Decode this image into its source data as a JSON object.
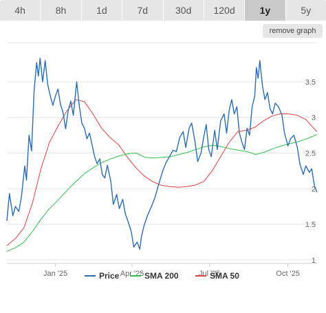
{
  "tabs": [
    {
      "label": "4h",
      "active": false
    },
    {
      "label": "8h",
      "active": false
    },
    {
      "label": "1d",
      "active": false
    },
    {
      "label": "7d",
      "active": false
    },
    {
      "label": "30d",
      "active": false
    },
    {
      "label": "120d",
      "active": false
    },
    {
      "label": "1y",
      "active": true
    },
    {
      "label": "5y",
      "active": false
    }
  ],
  "remove_graph_label": "remove graph",
  "colors": {
    "price": "#2b6cb0",
    "sma200": "#2fbf4a",
    "sma50": "#e0403c",
    "grid": "#e6e6e6"
  },
  "chart_data": {
    "type": "line",
    "title": "",
    "xlabel": "",
    "ylabel": "",
    "x_range": [
      "2024-11-05",
      "2025-11-05"
    ],
    "ylim": [
      0.95,
      4.05
    ],
    "y_ticks": [
      1,
      1.5,
      2,
      2.5,
      3,
      3.5
    ],
    "y_tick_labels": [
      "1",
      "1.5",
      "2",
      "2.5",
      "3",
      "3.5"
    ],
    "x_ticks": [
      "2025-01-01",
      "2025-04-01",
      "2025-07-01",
      "2025-10-01"
    ],
    "x_tick_labels": [
      "Jan '25",
      "Apr '25",
      "Jul '25",
      "Oct '25"
    ],
    "grid": true,
    "legend_position": "bottom",
    "series": [
      {
        "name": "Price",
        "color": "#2b6cb0",
        "points": [
          [
            "2024-11-05",
            1.55
          ],
          [
            "2024-11-08",
            1.93
          ],
          [
            "2024-11-12",
            1.62
          ],
          [
            "2024-11-15",
            1.75
          ],
          [
            "2024-11-19",
            1.68
          ],
          [
            "2024-11-22",
            1.88
          ],
          [
            "2024-11-26",
            2.32
          ],
          [
            "2024-11-28",
            2.12
          ],
          [
            "2024-12-01",
            2.75
          ],
          [
            "2024-12-04",
            2.53
          ],
          [
            "2024-12-07",
            3.38
          ],
          [
            "2024-12-10",
            3.77
          ],
          [
            "2024-12-12",
            3.58
          ],
          [
            "2024-12-14",
            3.83
          ],
          [
            "2024-12-17",
            3.5
          ],
          [
            "2024-12-20",
            3.8
          ],
          [
            "2024-12-23",
            3.46
          ],
          [
            "2024-12-26",
            3.3
          ],
          [
            "2024-12-29",
            3.17
          ],
          [
            "2025-01-01",
            3.3
          ],
          [
            "2025-01-04",
            3.4
          ],
          [
            "2025-01-07",
            3.18
          ],
          [
            "2025-01-10",
            3.07
          ],
          [
            "2025-01-13",
            2.84
          ],
          [
            "2025-01-16",
            3.1
          ],
          [
            "2025-01-19",
            3.23
          ],
          [
            "2025-01-22",
            3.03
          ],
          [
            "2025-01-26",
            3.5
          ],
          [
            "2025-01-29",
            3.16
          ],
          [
            "2025-02-01",
            2.92
          ],
          [
            "2025-02-04",
            2.85
          ],
          [
            "2025-02-07",
            2.7
          ],
          [
            "2025-02-10",
            2.78
          ],
          [
            "2025-02-13",
            2.62
          ],
          [
            "2025-02-16",
            2.45
          ],
          [
            "2025-02-19",
            2.35
          ],
          [
            "2025-02-22",
            2.42
          ],
          [
            "2025-02-25",
            2.2
          ],
          [
            "2025-02-28",
            2.15
          ],
          [
            "2025-03-03",
            2.33
          ],
          [
            "2025-03-07",
            2.1
          ],
          [
            "2025-03-10",
            1.78
          ],
          [
            "2025-03-14",
            1.92
          ],
          [
            "2025-03-17",
            1.72
          ],
          [
            "2025-03-21",
            1.85
          ],
          [
            "2025-03-24",
            1.65
          ],
          [
            "2025-03-27",
            1.55
          ],
          [
            "2025-03-31",
            1.4
          ],
          [
            "2025-04-03",
            1.18
          ],
          [
            "2025-04-07",
            1.25
          ],
          [
            "2025-04-10",
            1.15
          ],
          [
            "2025-04-12",
            1.33
          ],
          [
            "2025-04-15",
            1.48
          ],
          [
            "2025-04-19",
            1.62
          ],
          [
            "2025-04-23",
            1.73
          ],
          [
            "2025-04-28",
            1.88
          ],
          [
            "2025-05-02",
            2.05
          ],
          [
            "2025-05-07",
            2.25
          ],
          [
            "2025-05-11",
            2.37
          ],
          [
            "2025-05-15",
            2.45
          ],
          [
            "2025-05-19",
            2.54
          ],
          [
            "2025-05-23",
            2.52
          ],
          [
            "2025-05-27",
            2.72
          ],
          [
            "2025-05-31",
            2.8
          ],
          [
            "2025-06-03",
            2.58
          ],
          [
            "2025-06-07",
            2.85
          ],
          [
            "2025-06-10",
            2.92
          ],
          [
            "2025-06-14",
            2.65
          ],
          [
            "2025-06-17",
            2.38
          ],
          [
            "2025-06-21",
            2.5
          ],
          [
            "2025-06-24",
            2.72
          ],
          [
            "2025-06-27",
            2.9
          ],
          [
            "2025-06-30",
            2.55
          ],
          [
            "2025-07-03",
            2.45
          ],
          [
            "2025-07-07",
            2.82
          ],
          [
            "2025-07-10",
            2.55
          ],
          [
            "2025-07-14",
            2.95
          ],
          [
            "2025-07-18",
            3.05
          ],
          [
            "2025-07-21",
            2.78
          ],
          [
            "2025-07-24",
            3.1
          ],
          [
            "2025-07-27",
            3.25
          ],
          [
            "2025-07-30",
            3.05
          ],
          [
            "2025-08-02",
            3.15
          ],
          [
            "2025-08-05",
            2.78
          ],
          [
            "2025-08-08",
            2.65
          ],
          [
            "2025-08-11",
            2.55
          ],
          [
            "2025-08-14",
            2.85
          ],
          [
            "2025-08-17",
            2.75
          ],
          [
            "2025-08-20",
            3.15
          ],
          [
            "2025-08-23",
            3.3
          ],
          [
            "2025-08-25",
            3.7
          ],
          [
            "2025-08-27",
            3.55
          ],
          [
            "2025-08-29",
            3.8
          ],
          [
            "2025-09-01",
            3.45
          ],
          [
            "2025-09-04",
            3.25
          ],
          [
            "2025-09-07",
            3.35
          ],
          [
            "2025-09-10",
            3.12
          ],
          [
            "2025-09-13",
            3.05
          ],
          [
            "2025-09-16",
            3.2
          ],
          [
            "2025-09-20",
            3.15
          ],
          [
            "2025-09-24",
            3.03
          ],
          [
            "2025-09-27",
            2.78
          ],
          [
            "2025-10-01",
            2.6
          ],
          [
            "2025-10-04",
            2.7
          ],
          [
            "2025-10-08",
            2.75
          ],
          [
            "2025-10-12",
            2.58
          ],
          [
            "2025-10-15",
            2.35
          ],
          [
            "2025-10-19",
            2.2
          ],
          [
            "2025-10-22",
            2.32
          ],
          [
            "2025-10-26",
            2.23
          ],
          [
            "2025-10-29",
            2.28
          ],
          [
            "2025-11-01",
            2.05
          ],
          [
            "2025-11-04",
            1.95
          ]
        ]
      },
      {
        "name": "SMA 200",
        "color": "#2fbf4a",
        "points": [
          [
            "2024-11-05",
            1.12
          ],
          [
            "2024-11-15",
            1.17
          ],
          [
            "2024-11-25",
            1.25
          ],
          [
            "2024-12-05",
            1.4
          ],
          [
            "2024-12-15",
            1.57
          ],
          [
            "2024-12-25",
            1.72
          ],
          [
            "2025-01-05",
            1.85
          ],
          [
            "2025-01-15",
            1.98
          ],
          [
            "2025-01-25",
            2.1
          ],
          [
            "2025-02-05",
            2.22
          ],
          [
            "2025-02-15",
            2.3
          ],
          [
            "2025-02-25",
            2.37
          ],
          [
            "2025-03-07",
            2.42
          ],
          [
            "2025-03-17",
            2.46
          ],
          [
            "2025-03-27",
            2.49
          ],
          [
            "2025-04-06",
            2.5
          ],
          [
            "2025-04-16",
            2.44
          ],
          [
            "2025-04-26",
            2.43
          ],
          [
            "2025-05-06",
            2.44
          ],
          [
            "2025-05-16",
            2.45
          ],
          [
            "2025-05-26",
            2.48
          ],
          [
            "2025-06-05",
            2.51
          ],
          [
            "2025-06-15",
            2.55
          ],
          [
            "2025-06-25",
            2.59
          ],
          [
            "2025-07-05",
            2.61
          ],
          [
            "2025-07-15",
            2.59
          ],
          [
            "2025-07-25",
            2.56
          ],
          [
            "2025-08-04",
            2.54
          ],
          [
            "2025-08-14",
            2.52
          ],
          [
            "2025-08-24",
            2.48
          ],
          [
            "2025-09-03",
            2.51
          ],
          [
            "2025-09-13",
            2.56
          ],
          [
            "2025-09-23",
            2.6
          ],
          [
            "2025-10-03",
            2.63
          ],
          [
            "2025-10-13",
            2.66
          ],
          [
            "2025-10-23",
            2.7
          ],
          [
            "2025-11-04",
            2.76
          ]
        ]
      },
      {
        "name": "SMA 50",
        "color": "#e0403c",
        "points": [
          [
            "2024-11-05",
            1.2
          ],
          [
            "2024-11-15",
            1.3
          ],
          [
            "2024-11-25",
            1.45
          ],
          [
            "2024-12-05",
            1.8
          ],
          [
            "2024-12-15",
            2.28
          ],
          [
            "2024-12-25",
            2.65
          ],
          [
            "2025-01-05",
            2.9
          ],
          [
            "2025-01-15",
            3.1
          ],
          [
            "2025-01-25",
            3.25
          ],
          [
            "2025-02-04",
            3.22
          ],
          [
            "2025-02-14",
            3.05
          ],
          [
            "2025-02-24",
            2.85
          ],
          [
            "2025-03-06",
            2.72
          ],
          [
            "2025-03-16",
            2.62
          ],
          [
            "2025-03-26",
            2.45
          ],
          [
            "2025-04-05",
            2.3
          ],
          [
            "2025-04-15",
            2.18
          ],
          [
            "2025-04-25",
            2.1
          ],
          [
            "2025-05-05",
            2.05
          ],
          [
            "2025-05-15",
            2.03
          ],
          [
            "2025-05-25",
            2.02
          ],
          [
            "2025-06-04",
            2.03
          ],
          [
            "2025-06-14",
            2.05
          ],
          [
            "2025-06-24",
            2.1
          ],
          [
            "2025-07-04",
            2.25
          ],
          [
            "2025-07-14",
            2.45
          ],
          [
            "2025-07-24",
            2.65
          ],
          [
            "2025-08-03",
            2.8
          ],
          [
            "2025-08-13",
            2.82
          ],
          [
            "2025-08-23",
            2.86
          ],
          [
            "2025-09-02",
            2.95
          ],
          [
            "2025-09-12",
            3.02
          ],
          [
            "2025-09-22",
            3.05
          ],
          [
            "2025-10-02",
            3.05
          ],
          [
            "2025-10-12",
            3.03
          ],
          [
            "2025-10-22",
            2.97
          ],
          [
            "2025-11-04",
            2.8
          ]
        ]
      }
    ]
  }
}
